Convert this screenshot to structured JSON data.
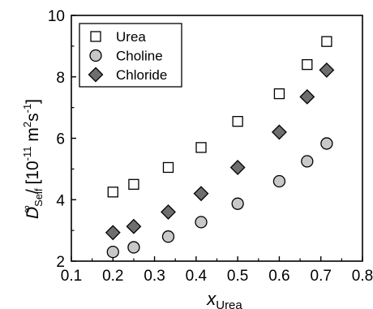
{
  "chart_data": {
    "type": "scatter",
    "xlabel": {
      "main": "x",
      "sub": "Urea"
    },
    "ylabel": {
      "main": "D",
      "sup": "∞",
      "sub": "Self",
      "units": "/ [10",
      "units_sup1": "-11",
      "units_mid": " m",
      "units_sup2": "2",
      "units_mid2": "s",
      "units_sup3": "-1",
      "units_end": "]"
    },
    "xlim": [
      0.1,
      0.8
    ],
    "ylim": [
      2,
      10
    ],
    "xticks": [
      "0.1",
      "0.2",
      "0.3",
      "0.4",
      "0.5",
      "0.6",
      "0.7",
      "0.8"
    ],
    "yticks": [
      "2",
      "4",
      "6",
      "8",
      "10"
    ],
    "grid": false,
    "legend_position": "top-left",
    "series": [
      {
        "name": "Urea",
        "marker": "square",
        "fill": "#ffffff",
        "stroke": "#000000",
        "points": [
          [
            0.2,
            4.25
          ],
          [
            0.25,
            4.5
          ],
          [
            0.333,
            5.05
          ],
          [
            0.412,
            5.7
          ],
          [
            0.5,
            6.55
          ],
          [
            0.6,
            7.45
          ],
          [
            0.667,
            8.4
          ],
          [
            0.714,
            9.15
          ]
        ]
      },
      {
        "name": "Choline",
        "marker": "circle",
        "fill": "#c8c8c8",
        "stroke": "#000000",
        "points": [
          [
            0.2,
            2.3
          ],
          [
            0.25,
            2.45
          ],
          [
            0.333,
            2.8
          ],
          [
            0.412,
            3.27
          ],
          [
            0.5,
            3.87
          ],
          [
            0.6,
            4.6
          ],
          [
            0.667,
            5.25
          ],
          [
            0.714,
            5.83
          ]
        ]
      },
      {
        "name": "Chloride",
        "marker": "diamond",
        "fill": "#6e6e6e",
        "stroke": "#000000",
        "points": [
          [
            0.2,
            2.93
          ],
          [
            0.25,
            3.13
          ],
          [
            0.333,
            3.6
          ],
          [
            0.412,
            4.2
          ],
          [
            0.5,
            5.05
          ],
          [
            0.6,
            6.2
          ],
          [
            0.667,
            7.35
          ],
          [
            0.714,
            8.22
          ]
        ]
      }
    ]
  }
}
